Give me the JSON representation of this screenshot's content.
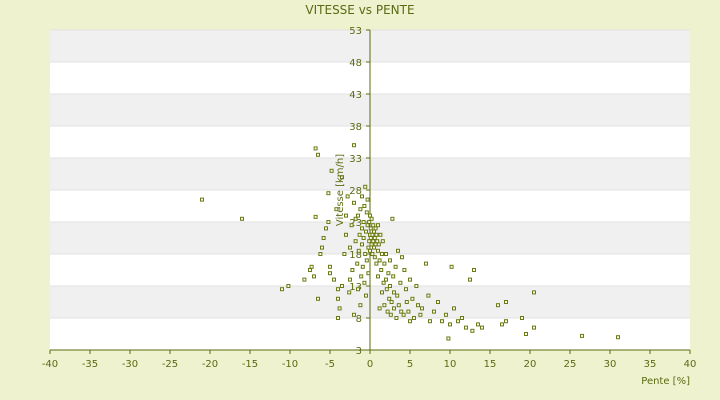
{
  "chart_data": {
    "type": "scatter",
    "title": "VITESSE vs PENTE",
    "xlabel": "Pente [%]",
    "ylabel": "Vitesse [km/h]",
    "xlim": [
      -40,
      40
    ],
    "ylim": [
      3,
      53
    ],
    "xticks": [
      -40,
      -35,
      -30,
      -25,
      -20,
      -15,
      -10,
      -5,
      0,
      5,
      10,
      15,
      20,
      25,
      30,
      35,
      40
    ],
    "yticks": [
      3,
      8,
      13,
      18,
      23,
      28,
      33,
      38,
      43,
      48,
      53
    ],
    "grid": "horizontal alternating bands",
    "legend": "none",
    "colors": {
      "background": "#eef2cf",
      "band_light": "#ffffff",
      "band_dark": "#f0f0f0",
      "axis": "#5a6a12",
      "marker": "#6b7a14"
    },
    "series": [
      {
        "points": [
          [
            -21,
            26.5
          ],
          [
            -16,
            23.5
          ],
          [
            -11,
            12.5
          ],
          [
            -10.2,
            13
          ],
          [
            -8.2,
            14
          ],
          [
            -7.5,
            15.5
          ],
          [
            -7.3,
            16
          ],
          [
            -7,
            14.5
          ],
          [
            -6.8,
            23.8
          ],
          [
            -6.8,
            34.5
          ],
          [
            -6.5,
            33.5
          ],
          [
            -6.5,
            11
          ],
          [
            -6.2,
            18
          ],
          [
            -6,
            19
          ],
          [
            -5.8,
            20.5
          ],
          [
            -5.5,
            22
          ],
          [
            -5.2,
            27.5
          ],
          [
            -5.2,
            23
          ],
          [
            -5,
            16
          ],
          [
            -5,
            15
          ],
          [
            -4.8,
            31
          ],
          [
            -4.5,
            14
          ],
          [
            -4.2,
            25
          ],
          [
            -4,
            12.5
          ],
          [
            -4,
            11
          ],
          [
            -4,
            8
          ],
          [
            -3.8,
            9.5
          ],
          [
            -3.5,
            30
          ],
          [
            -3.5,
            13
          ],
          [
            -3.2,
            18
          ],
          [
            -3,
            21
          ],
          [
            -3,
            24
          ],
          [
            -2.8,
            27
          ],
          [
            -2.6,
            12
          ],
          [
            -2.5,
            19
          ],
          [
            -2.5,
            14
          ],
          [
            -2.3,
            22.5
          ],
          [
            -2.2,
            15.5
          ],
          [
            -2,
            35
          ],
          [
            -2,
            26
          ],
          [
            -2,
            8.5
          ],
          [
            -1.8,
            20
          ],
          [
            -1.8,
            23.5
          ],
          [
            -1.6,
            16.5
          ],
          [
            -1.5,
            24
          ],
          [
            -1.5,
            12.5
          ],
          [
            -1.4,
            18.5
          ],
          [
            -1.3,
            21
          ],
          [
            -1.2,
            25
          ],
          [
            -1.2,
            10
          ],
          [
            -1.1,
            14.5
          ],
          [
            -1,
            22
          ],
          [
            -1,
            19.5
          ],
          [
            -1,
            27
          ],
          [
            -0.9,
            16
          ],
          [
            -0.8,
            23
          ],
          [
            -0.8,
            20.5
          ],
          [
            -0.7,
            13.5
          ],
          [
            -0.7,
            25.5
          ],
          [
            -0.6,
            18
          ],
          [
            -0.6,
            28.5
          ],
          [
            -0.5,
            21.5
          ],
          [
            -0.5,
            11.5
          ],
          [
            -0.4,
            24.5
          ],
          [
            -0.4,
            17
          ],
          [
            -0.3,
            22.5
          ],
          [
            -0.3,
            26.5
          ],
          [
            -0.2,
            19
          ],
          [
            -0.2,
            15
          ],
          [
            -0.1,
            23
          ],
          [
            -0.1,
            20
          ],
          [
            0,
            21
          ],
          [
            0,
            18.5
          ],
          [
            0,
            24
          ],
          [
            0.1,
            20.5
          ],
          [
            0.1,
            22
          ],
          [
            0.2,
            19.5
          ],
          [
            0.2,
            23.5
          ],
          [
            0.3,
            21
          ],
          [
            0.3,
            18
          ],
          [
            0.4,
            20
          ],
          [
            0.4,
            22.5
          ],
          [
            0.5,
            19
          ],
          [
            0.5,
            21.5
          ],
          [
            0.6,
            20.5
          ],
          [
            0.6,
            17.5
          ],
          [
            0.7,
            22
          ],
          [
            0.7,
            19.5
          ],
          [
            0.8,
            21
          ],
          [
            0.8,
            16.5
          ],
          [
            0.9,
            20
          ],
          [
            1,
            18.5
          ],
          [
            1,
            22.5
          ],
          [
            1,
            14.5
          ],
          [
            1.1,
            19.5
          ],
          [
            1.2,
            17
          ],
          [
            1.2,
            9.5
          ],
          [
            1.3,
            21
          ],
          [
            1.4,
            15.5
          ],
          [
            1.5,
            18
          ],
          [
            1.5,
            12
          ],
          [
            1.6,
            20
          ],
          [
            1.7,
            13.5
          ],
          [
            1.8,
            16.5
          ],
          [
            1.8,
            10
          ],
          [
            2,
            14
          ],
          [
            2,
            18
          ],
          [
            2.1,
            12.5
          ],
          [
            2.2,
            9
          ],
          [
            2.3,
            15
          ],
          [
            2.4,
            11
          ],
          [
            2.5,
            17
          ],
          [
            2.5,
            13
          ],
          [
            2.6,
            8.5
          ],
          [
            2.7,
            10.5
          ],
          [
            2.8,
            23.5
          ],
          [
            2.9,
            14.5
          ],
          [
            3,
            12
          ],
          [
            3,
            9.5
          ],
          [
            3.2,
            16
          ],
          [
            3.3,
            8
          ],
          [
            3.4,
            11.5
          ],
          [
            3.5,
            18.5
          ],
          [
            3.6,
            10
          ],
          [
            3.8,
            13.5
          ],
          [
            3.9,
            9
          ],
          [
            4,
            17.5
          ],
          [
            4.2,
            8.5
          ],
          [
            4.3,
            15.5
          ],
          [
            4.5,
            12.5
          ],
          [
            4.6,
            10.5
          ],
          [
            4.8,
            9
          ],
          [
            5,
            14
          ],
          [
            5,
            7.5
          ],
          [
            5.3,
            11
          ],
          [
            5.5,
            8
          ],
          [
            5.8,
            13
          ],
          [
            6,
            10
          ],
          [
            6.3,
            8.5
          ],
          [
            6.5,
            9.5
          ],
          [
            7,
            16.5
          ],
          [
            7.3,
            11.5
          ],
          [
            7.5,
            7.5
          ],
          [
            8,
            9
          ],
          [
            8.5,
            10.5
          ],
          [
            9,
            7.5
          ],
          [
            9.5,
            8.5
          ],
          [
            9.8,
            4.8
          ],
          [
            10,
            7
          ],
          [
            10.2,
            16
          ],
          [
            10.5,
            9.5
          ],
          [
            11,
            7.5
          ],
          [
            11.5,
            8
          ],
          [
            12,
            6.5
          ],
          [
            12.5,
            14
          ],
          [
            12.8,
            6
          ],
          [
            13,
            15.5
          ],
          [
            13.5,
            7
          ],
          [
            14,
            6.5
          ],
          [
            16,
            10
          ],
          [
            16.5,
            7
          ],
          [
            17,
            7.5
          ],
          [
            17,
            10.5
          ],
          [
            19,
            8
          ],
          [
            19.5,
            5.5
          ],
          [
            20.5,
            12
          ],
          [
            20.5,
            6.5
          ],
          [
            26.5,
            5.2
          ],
          [
            31,
            5
          ]
        ]
      }
    ]
  }
}
